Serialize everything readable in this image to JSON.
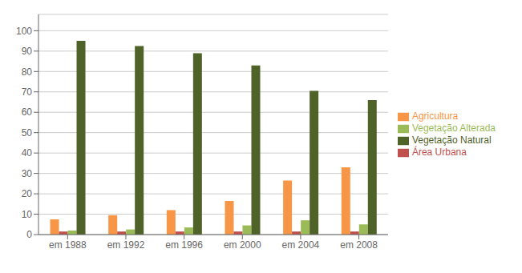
{
  "chart_data": {
    "type": "bar",
    "categories": [
      "em 1988",
      "em 1992",
      "em 1996",
      "em 2000",
      "em 2004",
      "em 2008"
    ],
    "series": [
      {
        "name": "Agricultura",
        "color": "#F79646",
        "values": [
          7.5,
          9.5,
          12,
          16.5,
          26.5,
          33
        ]
      },
      {
        "name": "Área Urbana",
        "color": "#C0504D",
        "values": [
          1.5,
          1.5,
          1.5,
          1.5,
          1.5,
          1.5
        ]
      },
      {
        "name": "Vegetação Alterada",
        "color": "#9BBB59",
        "values": [
          2,
          2.5,
          3.5,
          4.5,
          7,
          5
        ]
      },
      {
        "name": "Vegetação Natural",
        "color": "#4F6228",
        "values": [
          95,
          92.5,
          89,
          83,
          70.5,
          66
        ]
      }
    ],
    "ylim": [
      0,
      108
    ],
    "yticks": [
      0,
      10,
      20,
      30,
      40,
      50,
      60,
      70,
      80,
      90,
      100
    ],
    "grid": true,
    "legend": "right"
  }
}
